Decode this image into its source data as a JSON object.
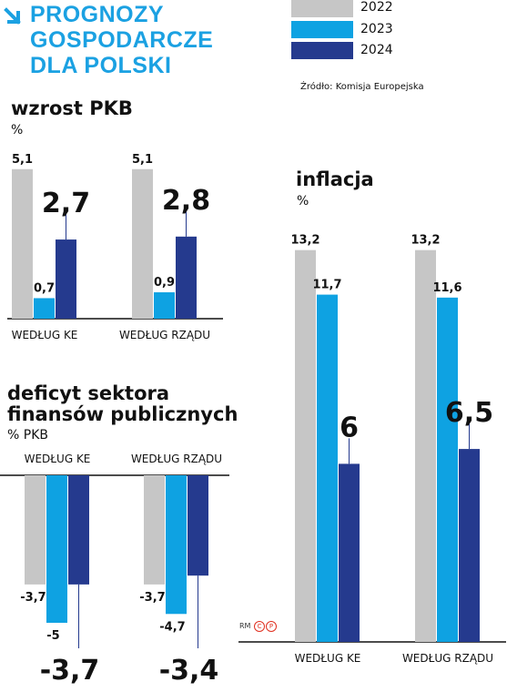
{
  "title": [
    "PROGNOZY",
    "GOSPODARCZE",
    "DLA POLSKI"
  ],
  "legend": [
    {
      "label": "2022",
      "color": "#c6c6c6"
    },
    {
      "label": "2023",
      "color": "#0ea2e2"
    },
    {
      "label": "2024",
      "color": "#253a8e"
    }
  ],
  "source": "Źródło: Komisja Europejska",
  "credit": {
    "rm": "RM",
    "c": "C",
    "p": "P"
  },
  "chart_data": [
    {
      "type": "bar",
      "title": "wzrost PKB",
      "unit": "%",
      "categories": [
        "WEDŁUG KE",
        "WEDŁUG RZĄDU"
      ],
      "series": [
        {
          "name": "2022",
          "values": [
            5.1,
            5.1
          ],
          "labels": [
            "5,1",
            "5,1"
          ]
        },
        {
          "name": "2023",
          "values": [
            0.7,
            0.9
          ],
          "labels": [
            "0,7",
            "0,9"
          ]
        },
        {
          "name": "2024",
          "values": [
            2.7,
            2.8
          ],
          "labels": [
            "2,7",
            "2,8"
          ]
        }
      ]
    },
    {
      "type": "bar",
      "title": "inflacja",
      "unit": "%",
      "categories": [
        "WEDŁUG KE",
        "WEDŁUG RZĄDU"
      ],
      "series": [
        {
          "name": "2022",
          "values": [
            13.2,
            13.2
          ],
          "labels": [
            "13,2",
            "13,2"
          ]
        },
        {
          "name": "2023",
          "values": [
            11.7,
            11.6
          ],
          "labels": [
            "11,7",
            "11,6"
          ]
        },
        {
          "name": "2024",
          "values": [
            6,
            6.5
          ],
          "labels": [
            "6",
            "6,5"
          ]
        }
      ]
    },
    {
      "type": "bar",
      "title": "deficyt sektora finansów publicznych",
      "title_lines": [
        "deficyt sektora",
        "finansów publicznych"
      ],
      "unit": "% PKB",
      "categories": [
        "WEDŁUG KE",
        "WEDŁUG RZĄDU"
      ],
      "series": [
        {
          "name": "2022",
          "values": [
            -3.7,
            -3.7
          ],
          "labels": [
            "-3,7",
            "-3,7"
          ]
        },
        {
          "name": "2023",
          "values": [
            -5,
            -4.7
          ],
          "labels": [
            "-5",
            "-4,7"
          ]
        },
        {
          "name": "2024",
          "values": [
            -3.7,
            -3.4
          ],
          "labels": [
            "-3,7",
            "-3,4"
          ]
        }
      ]
    }
  ]
}
